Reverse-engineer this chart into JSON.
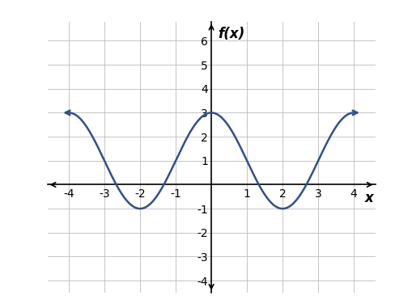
{
  "title": "f(x)",
  "xlabel": "x",
  "xlim": [
    -4.6,
    4.6
  ],
  "ylim": [
    -4.5,
    6.8
  ],
  "xticks": [
    -4,
    -3,
    -2,
    -1,
    1,
    2,
    3,
    4
  ],
  "yticks": [
    -4,
    -3,
    -2,
    -1,
    1,
    2,
    3,
    4,
    5,
    6
  ],
  "curve_color": "#2E5090",
  "curve_linewidth": 1.8,
  "grid_color": "#bbbbbb",
  "background_color": "#ffffff",
  "amplitude": 2,
  "vertical_shift": 1,
  "period": 4,
  "title_fontsize": 12,
  "tick_fontsize": 9
}
